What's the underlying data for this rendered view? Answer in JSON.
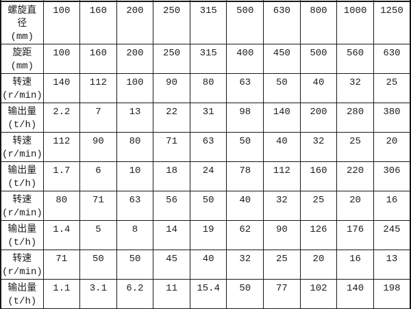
{
  "table": {
    "columns_per_row": 10,
    "rows": [
      {
        "label": "螺旋直径(mm)",
        "label_lines": [
          "螺旋直",
          "径",
          "(mm)"
        ],
        "values": [
          "100",
          "160",
          "200",
          "250",
          "315",
          "500",
          "630",
          "800",
          "1000",
          "1250"
        ]
      },
      {
        "label": "旋距(mm)",
        "label_lines": [
          "旋距",
          "(mm)"
        ],
        "values": [
          "100",
          "160",
          "200",
          "250",
          "315",
          "400",
          "450",
          "500",
          "560",
          "630"
        ]
      },
      {
        "label": "转速(r/min)",
        "label_lines": [
          "转速",
          "(r/min)"
        ],
        "values": [
          "140",
          "112",
          "100",
          "90",
          "80",
          "63",
          "50",
          "40",
          "32",
          "25"
        ]
      },
      {
        "label": "输出量(t/h)",
        "label_lines": [
          "输出量",
          "(t/h)"
        ],
        "values": [
          "2.2",
          "7",
          "13",
          "22",
          "31",
          "98",
          "140",
          "200",
          "280",
          "380"
        ]
      },
      {
        "label": "转速(r/min)",
        "label_lines": [
          "转速",
          "(r/min)"
        ],
        "values": [
          "112",
          "90",
          "80",
          "71",
          "63",
          "50",
          "40",
          "32",
          "25",
          "20"
        ]
      },
      {
        "label": "输出量(t/h)",
        "label_lines": [
          "输出量",
          "(t/h)"
        ],
        "values": [
          "1.7",
          "6",
          "10",
          "18",
          "24",
          "78",
          "112",
          "160",
          "220",
          "306"
        ]
      },
      {
        "label": "转速(r/min)",
        "label_lines": [
          "转速",
          "(r/min)"
        ],
        "values": [
          "80",
          "71",
          "63",
          "56",
          "50",
          "40",
          "32",
          "25",
          "20",
          "16"
        ]
      },
      {
        "label": "输出量(t/h)",
        "label_lines": [
          "输出量",
          "(t/h)"
        ],
        "values": [
          "1.4",
          "5",
          "8",
          "14",
          "19",
          "62",
          "90",
          "126",
          "176",
          "245"
        ]
      },
      {
        "label": "转速(r/min)",
        "label_lines": [
          "转速",
          "(r/min)"
        ],
        "values": [
          "71",
          "50",
          "50",
          "45",
          "40",
          "32",
          "25",
          "20",
          "16",
          "13"
        ]
      },
      {
        "label": "输出量(t/h)",
        "label_lines": [
          "输出量",
          "(t/h)"
        ],
        "values": [
          "1.1",
          "3.1",
          "6.2",
          "11",
          "15.4",
          "50",
          "77",
          "102",
          "140",
          "198"
        ]
      }
    ],
    "colors": {
      "border": "#161616",
      "text": "#1c1c1c",
      "background": "#ffffff"
    }
  }
}
